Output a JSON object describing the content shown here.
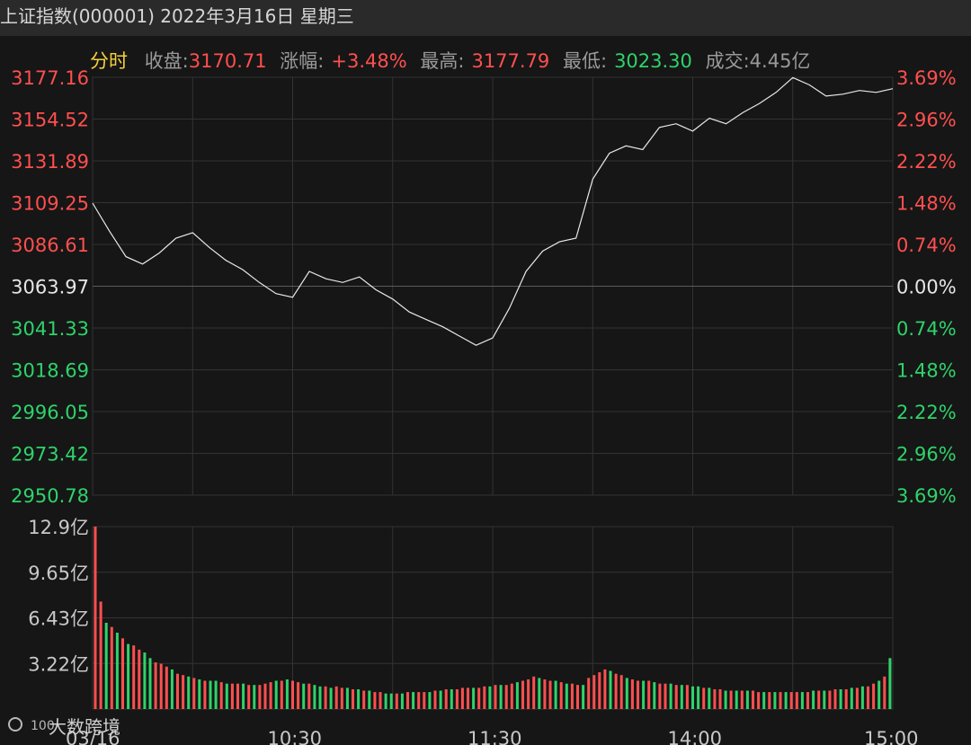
{
  "header": {
    "title": "上证指数(000001) 2022年3月16日 星期三"
  },
  "quote": {
    "tab_label": "分时",
    "close_label": "收盘:",
    "close_value": "3170.71",
    "change_label": "涨幅:",
    "change_value": "+3.48%",
    "high_label": "最高:",
    "high_value": "3177.79",
    "low_label": "最低:",
    "low_value": "3023.30",
    "volume_label": "成交:",
    "volume_value": "4.45亿"
  },
  "watermark": "大数跨境",
  "colors": {
    "up": "#ff4f4f",
    "down": "#2ed36a",
    "neutral": "#e6e6e6",
    "line": "#e8e8e8",
    "grid": "#333333"
  },
  "chart_data": [
    {
      "type": "line",
      "title": "",
      "xlabel": "",
      "ylabel": "",
      "ylim": [
        2950.78,
        3177.16
      ],
      "prev_close": 3063.97,
      "y_ticks": [
        "3177.16",
        "3154.52",
        "3131.89",
        "3109.25",
        "3086.61",
        "3063.97",
        "3041.33",
        "3018.69",
        "2996.05",
        "2973.42",
        "2950.78"
      ],
      "y_ticks_right": [
        "3.69%",
        "2.96%",
        "2.22%",
        "1.48%",
        "0.74%",
        "0.00%",
        "0.74%",
        "1.48%",
        "2.22%",
        "2.96%",
        "3.69%"
      ],
      "x_ticks": [
        "03/16",
        "10:30",
        "11:30",
        "14:00",
        "15:00"
      ],
      "x_minutes": [
        0,
        5,
        10,
        15,
        20,
        25,
        30,
        35,
        40,
        45,
        50,
        55,
        60,
        65,
        70,
        75,
        80,
        85,
        90,
        95,
        100,
        105,
        110,
        115,
        120,
        125,
        130,
        135,
        140,
        145,
        150,
        155,
        160,
        165,
        170,
        175,
        180,
        185,
        190,
        195,
        200,
        205,
        210,
        215,
        220,
        225,
        230,
        235,
        240
      ],
      "series": [
        {
          "values": [
            3109,
            3094,
            3080,
            3076,
            3082,
            3090,
            3093,
            3085,
            3078,
            3073,
            3066,
            3060,
            3058,
            3072,
            3068,
            3066,
            3069,
            3062,
            3057,
            3050,
            3046,
            3042,
            3037,
            3032,
            3036,
            3052,
            3072,
            3083,
            3088,
            3090,
            3122,
            3136,
            3140,
            3138,
            3150,
            3152,
            3148,
            3155,
            3152,
            3158,
            3163,
            3169,
            3177,
            3173,
            3167,
            3168,
            3170,
            3169,
            3171
          ]
        }
      ]
    },
    {
      "type": "bar",
      "title": "",
      "ylabel": "",
      "ylim": [
        0,
        12.9
      ],
      "y_ticks": [
        "12.9亿",
        "9.65亿",
        "6.43亿",
        "3.22亿"
      ],
      "unit": "亿",
      "values": [
        12.9,
        7.6,
        6.1,
        5.8,
        5.4,
        5.0,
        4.6,
        4.5,
        4.2,
        4.0,
        3.6,
        3.3,
        3.2,
        3.0,
        2.8,
        2.5,
        2.4,
        2.3,
        2.2,
        2.1,
        2.0,
        2.0,
        2.0,
        1.9,
        1.8,
        1.8,
        1.8,
        1.8,
        1.7,
        1.7,
        1.7,
        1.8,
        1.9,
        2.0,
        2.0,
        2.1,
        2.0,
        1.9,
        1.8,
        1.8,
        1.7,
        1.6,
        1.6,
        1.5,
        1.6,
        1.5,
        1.5,
        1.4,
        1.4,
        1.3,
        1.3,
        1.2,
        1.2,
        1.1,
        1.1,
        1.1,
        1.1,
        1.2,
        1.2,
        1.2,
        1.2,
        1.2,
        1.3,
        1.3,
        1.4,
        1.4,
        1.4,
        1.5,
        1.5,
        1.5,
        1.5,
        1.6,
        1.6,
        1.7,
        1.7,
        1.7,
        1.8,
        1.9,
        2.0,
        2.1,
        2.3,
        2.2,
        2.1,
        2.0,
        2.0,
        1.9,
        1.8,
        1.8,
        1.7,
        1.7,
        2.2,
        2.4,
        2.6,
        2.8,
        2.7,
        2.5,
        2.4,
        2.2,
        2.1,
        2.0,
        2.0,
        2.0,
        1.9,
        1.8,
        1.8,
        1.8,
        1.7,
        1.7,
        1.7,
        1.6,
        1.6,
        1.5,
        1.5,
        1.4,
        1.4,
        1.3,
        1.3,
        1.3,
        1.3,
        1.3,
        1.3,
        1.2,
        1.2,
        1.2,
        1.2,
        1.2,
        1.2,
        1.2,
        1.2,
        1.2,
        1.2,
        1.3,
        1.3,
        1.3,
        1.3,
        1.4,
        1.4,
        1.4,
        1.5,
        1.5,
        1.6,
        1.6,
        1.8,
        2.0,
        2.3,
        3.6
      ],
      "up": [
        1,
        1,
        0,
        1,
        0,
        1,
        0,
        1,
        1,
        0,
        0,
        1,
        1,
        1,
        0,
        1,
        1,
        0,
        1,
        0,
        1,
        0,
        0,
        1,
        0,
        1,
        1,
        0,
        1,
        0,
        1,
        1,
        1,
        0,
        1,
        0,
        1,
        1,
        0,
        1,
        0,
        0,
        1,
        0,
        1,
        1,
        0,
        1,
        0,
        1,
        0,
        1,
        1,
        0,
        0,
        1,
        0,
        1,
        0,
        1,
        1,
        0,
        1,
        0,
        1,
        0,
        1,
        1,
        1,
        0,
        1,
        1,
        0,
        1,
        0,
        1,
        1,
        0,
        1,
        1,
        1,
        0,
        1,
        1,
        0,
        1,
        0,
        1,
        1,
        0,
        1,
        1,
        1,
        1,
        0,
        1,
        1,
        0,
        1,
        1,
        0,
        1,
        0,
        1,
        1,
        0,
        1,
        0,
        1,
        0,
        0,
        1,
        0,
        1,
        1,
        0,
        1,
        0,
        1,
        0,
        1,
        1,
        0,
        1,
        0,
        1,
        0,
        1,
        1,
        0,
        1,
        0,
        1,
        0,
        1,
        1,
        0,
        1,
        0,
        1,
        0,
        1,
        1,
        0,
        1,
        0
      ]
    }
  ]
}
